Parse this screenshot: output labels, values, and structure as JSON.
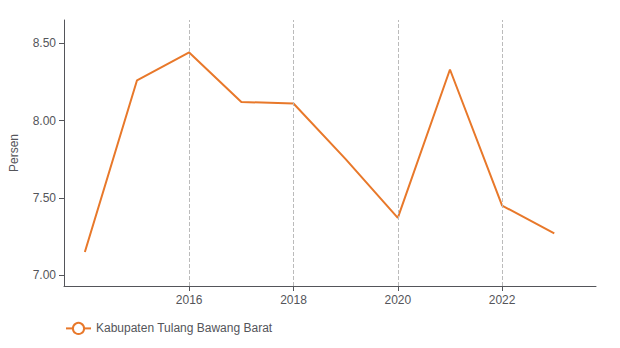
{
  "chart_data": {
    "type": "line",
    "x": [
      2014,
      2015,
      2016,
      2017,
      2018,
      2019,
      2020,
      2021,
      2022,
      2023
    ],
    "series": [
      {
        "name": "Kabupaten Tulang Bawang Barat",
        "color": "#E8782A",
        "values": [
          7.15,
          8.26,
          8.44,
          8.12,
          8.11,
          7.75,
          7.37,
          8.33,
          7.45,
          7.27
        ]
      }
    ],
    "ylabel": "Persen",
    "xlim": [
      2013.6,
      2023.8
    ],
    "xticks": [
      2016,
      2018,
      2020,
      2022
    ],
    "ylim": [
      6.93,
      8.65
    ],
    "yticks": [
      {
        "value": 7.0,
        "label": "7.00"
      },
      {
        "value": 7.5,
        "label": "7.50"
      },
      {
        "value": 8.0,
        "label": "8.00"
      },
      {
        "value": 8.5,
        "label": "8.50"
      }
    ],
    "grid": true,
    "legend": "lower left"
  }
}
